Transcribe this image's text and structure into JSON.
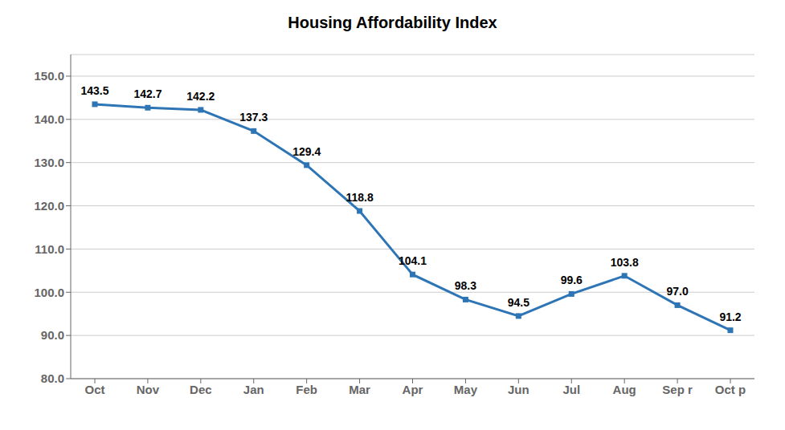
{
  "chart_data": {
    "type": "line",
    "title": "Housing Affordability Index",
    "categories": [
      "Oct",
      "Nov",
      "Dec",
      "Jan",
      "Feb",
      "Mar",
      "Apr",
      "May",
      "Jun",
      "Jul",
      "Aug",
      "Sep r",
      "Oct p"
    ],
    "values": [
      143.5,
      142.7,
      142.2,
      137.3,
      129.4,
      118.8,
      104.1,
      98.3,
      94.5,
      99.6,
      103.8,
      97.0,
      91.2
    ],
    "value_labels": [
      "143.5",
      "142.7",
      "142.2",
      "137.3",
      "129.4",
      "118.8",
      "104.1",
      "98.3",
      "94.5",
      "99.6",
      "103.8",
      "97.0",
      "91.2"
    ],
    "color": "#2E75B6",
    "marker": "square",
    "ylim": [
      80.0,
      155.0
    ],
    "yticks": [
      {
        "value": 80,
        "label": "80.0"
      },
      {
        "value": 90,
        "label": "90.0"
      },
      {
        "value": 100,
        "label": "100.0"
      },
      {
        "value": 110,
        "label": "110.0"
      },
      {
        "value": 120,
        "label": "120.0"
      },
      {
        "value": 130,
        "label": "130.0"
      },
      {
        "value": 140,
        "label": "140.0"
      },
      {
        "value": 150,
        "label": "150.0"
      }
    ],
    "grid": true,
    "data_labels": true
  }
}
